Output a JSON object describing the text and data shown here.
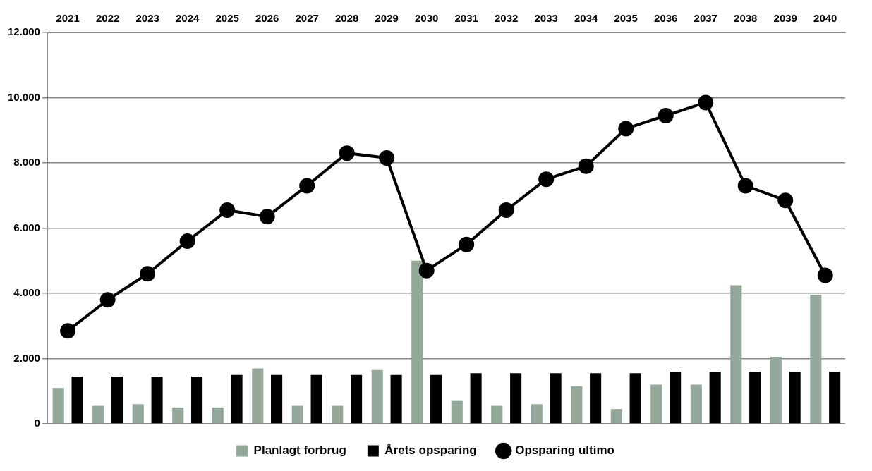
{
  "chart_data": {
    "type": "bar",
    "categories": [
      "2021",
      "2022",
      "2023",
      "2024",
      "2025",
      "2026",
      "2027",
      "2028",
      "2029",
      "2030",
      "2031",
      "2032",
      "2033",
      "2034",
      "2035",
      "2036",
      "2037",
      "2038",
      "2039",
      "2040"
    ],
    "series": [
      {
        "name": "Planlagt forbrug",
        "color": "#94a89a",
        "values": [
          1100,
          550,
          600,
          500,
          500,
          1700,
          550,
          550,
          1650,
          5000,
          700,
          550,
          600,
          1150,
          450,
          1200,
          1200,
          4250,
          2050,
          3950
        ]
      },
      {
        "name": "Årets opsparing",
        "color": "#000000",
        "values": [
          1450,
          1450,
          1450,
          1450,
          1500,
          1500,
          1500,
          1500,
          1500,
          1500,
          1550,
          1550,
          1550,
          1550,
          1550,
          1600,
          1600,
          1600,
          1600,
          1600
        ]
      },
      {
        "name": "Opsparing ultimo",
        "type": "line",
        "color": "#000000",
        "marker": "circle",
        "values": [
          2850,
          3800,
          4600,
          5600,
          6550,
          6350,
          7300,
          8300,
          8150,
          4700,
          5500,
          6550,
          7500,
          7900,
          9050,
          9450,
          9850,
          7300,
          6850,
          4550
        ]
      }
    ],
    "ylim": [
      0,
      12000
    ],
    "yticks": [
      {
        "value": 0,
        "label": "0"
      },
      {
        "value": 2000,
        "label": "2.000"
      },
      {
        "value": 4000,
        "label": "4.000"
      },
      {
        "value": 6000,
        "label": "6.000"
      },
      {
        "value": 8000,
        "label": "8.000"
      },
      {
        "value": 10000,
        "label": "10.000"
      },
      {
        "value": 12000,
        "label": "12.000"
      }
    ],
    "grid": "y",
    "legend": "bottom"
  }
}
